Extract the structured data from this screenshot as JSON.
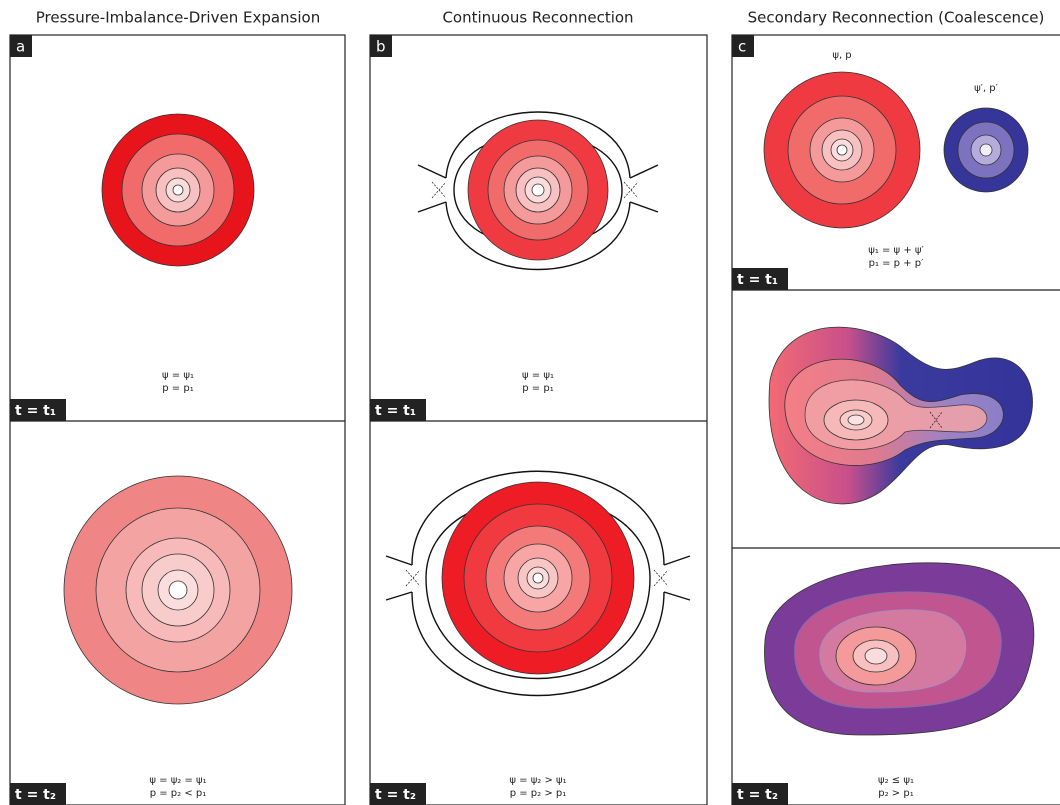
{
  "columns": [
    {
      "title": "Pressure-Imbalance-Driven Expansion",
      "label": "a",
      "panels": [
        {
          "time": "t = t₁",
          "equations": [
            "ψ = ψ₁",
            "p = p₁"
          ]
        },
        {
          "time": "t = t₂",
          "equations": [
            "ψ = ψ₂ = ψ₁",
            "p = p₂ < p₁"
          ]
        }
      ]
    },
    {
      "title": "Continuous Reconnection",
      "label": "b",
      "panels": [
        {
          "time": "t = t₁",
          "equations": [
            "ψ = ψ₁",
            "p = p₁"
          ]
        },
        {
          "time": "t = t₂",
          "equations": [
            "ψ = ψ₂ > ψ₁",
            "p = p₂ > p₁"
          ]
        }
      ]
    },
    {
      "title": "Secondary Reconnection (Coalescence)",
      "label": "c",
      "panels": [
        {
          "time": "t = t₁",
          "equations": [
            "ψ₁ = ψ + ψ′",
            "p₁ = p + p′"
          ],
          "annotations": [
            "ψ, p",
            "ψ′, p′"
          ]
        },
        {
          "time": "t = t₂",
          "equations": [
            "ψ₂ ≤ ψ₁",
            "p₂ > p₁"
          ]
        }
      ]
    }
  ]
}
